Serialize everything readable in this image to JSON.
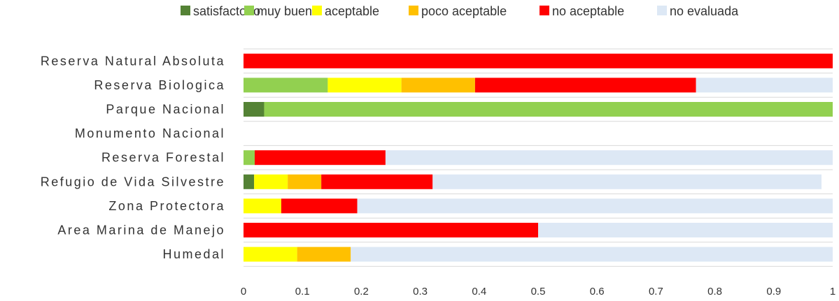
{
  "chart_data": {
    "type": "bar",
    "orientation": "horizontal",
    "stacked": true,
    "categories": [
      "Reserva Natural Absoluta",
      "Reserva Biologica",
      "Parque Nacional",
      "Monumento Nacional",
      "Reserva Forestal",
      "Refugio de Vida Silvestre",
      "Zona Protectora",
      "Area Marina de Manejo",
      "Humedal"
    ],
    "series": [
      {
        "name": "satisfactorio",
        "color": "#548235",
        "values": [
          0,
          0,
          0.035,
          0,
          0,
          0.018,
          0,
          0,
          0
        ]
      },
      {
        "name": "muy bueno",
        "color": "#92d050",
        "values": [
          0,
          0.143,
          0.965,
          0,
          0.019,
          0,
          0,
          0,
          0
        ]
      },
      {
        "name": "aceptable",
        "color": "#ffff00",
        "values": [
          0,
          0.125,
          0,
          0,
          0,
          0.057,
          0.064,
          0,
          0.091
        ]
      },
      {
        "name": "poco aceptable",
        "color": "#ffc000",
        "values": [
          0,
          0.125,
          0,
          0,
          0,
          0.057,
          0,
          0,
          0.091
        ]
      },
      {
        "name": "no aceptable",
        "color": "#ff0000",
        "values": [
          1,
          0.375,
          0,
          0,
          0.222,
          0.189,
          0.129,
          0.5,
          0
        ]
      },
      {
        "name": "no evaluada",
        "color": "#dde8f5",
        "values": [
          0,
          0.232,
          0,
          0,
          0.759,
          0.66,
          0.807,
          0.5,
          0.818
        ]
      }
    ],
    "xlim": [
      0,
      1
    ],
    "xticks": [
      "0",
      "0.1",
      "0.2",
      "0.3",
      "0.4",
      "0.5",
      "0.6",
      "0.7",
      "0.8",
      "0.9",
      "1"
    ],
    "xtick_values": [
      0,
      0.1,
      0.2,
      0.3,
      0.4,
      0.5,
      0.6,
      0.7,
      0.8,
      0.9,
      1
    ],
    "grid": "horizontal separators",
    "legend_position": "top"
  }
}
